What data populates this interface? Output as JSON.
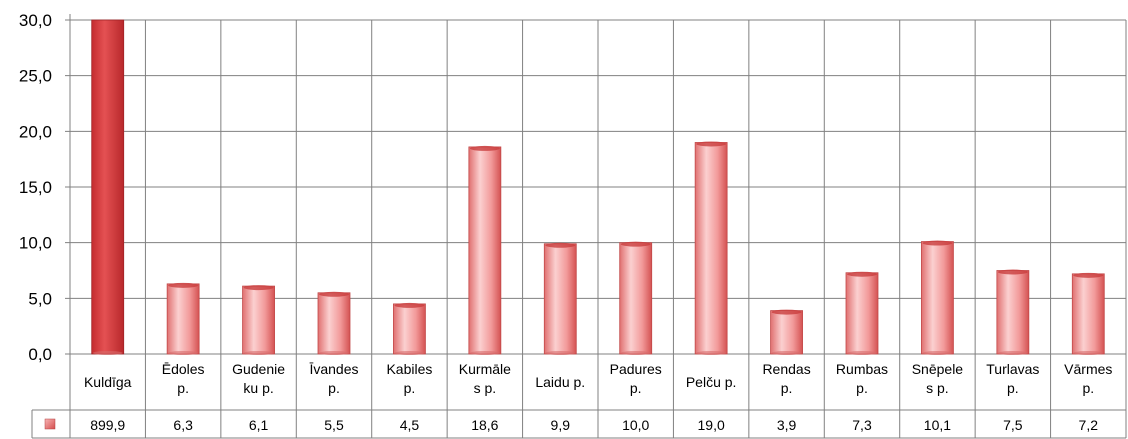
{
  "chart_data": {
    "type": "bar",
    "categories": [
      [
        "Kuldīga"
      ],
      [
        "Ēdoles",
        "p."
      ],
      [
        "Gudenie",
        "ku p."
      ],
      [
        "Īvandes",
        "p."
      ],
      [
        "Kabiles",
        "p."
      ],
      [
        "Kurmāle",
        "s p."
      ],
      [
        "Laidu p."
      ],
      [
        "Padures",
        "p."
      ],
      [
        "Pelču p."
      ],
      [
        "Rendas",
        "p."
      ],
      [
        "Rumbas",
        "p."
      ],
      [
        "Snēpele",
        "s p."
      ],
      [
        "Turlavas",
        "p."
      ],
      [
        "Vārmes",
        "p."
      ]
    ],
    "values": [
      899.9,
      6.3,
      6.1,
      5.5,
      4.5,
      18.6,
      9.9,
      10.0,
      19.0,
      3.9,
      7.3,
      10.1,
      7.5,
      7.2
    ],
    "value_labels": [
      "899,9",
      "6,3",
      "6,1",
      "5,5",
      "4,5",
      "18,6",
      "9,9",
      "10,0",
      "19,0",
      "3,9",
      "7,3",
      "10,1",
      "7,5",
      "7,2"
    ],
    "ylim": [
      0,
      30
    ],
    "yticks": [
      "0,0",
      "5,0",
      "10,0",
      "15,0",
      "20,0",
      "25,0",
      "30,0"
    ],
    "ytick_values": [
      0,
      5,
      10,
      15,
      20,
      25,
      30
    ],
    "grid": true,
    "legend": "data-table",
    "colors": {
      "bar_clipped": "#d9383b",
      "bar_light": "#f7b5b5",
      "bar_mid": "#ee8585",
      "bar_dark": "#d44c4c",
      "grid": "#808080"
    }
  }
}
